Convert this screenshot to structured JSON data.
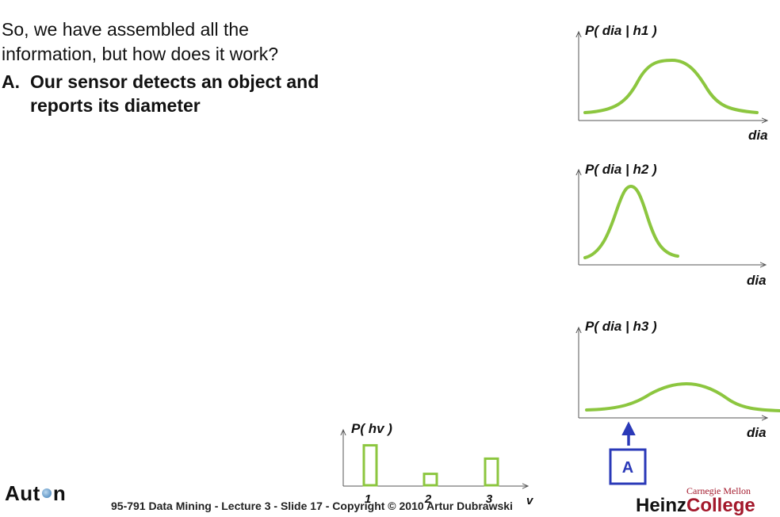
{
  "intro_text": "So, we have assembled all the information, but how does it work?",
  "bullet": {
    "marker": "A.",
    "text": "Our sensor detects an object and reports its diameter"
  },
  "plots": {
    "h1": {
      "title": "P( dia | h1 )",
      "xlabel": "dia"
    },
    "h2": {
      "title": "P( dia | h2 )",
      "xlabel": "dia"
    },
    "h3": {
      "title": "P( dia | h3 )",
      "xlabel": "dia"
    },
    "prior": {
      "title": "P( hv )",
      "xlabel": "v",
      "categories": [
        "1",
        "2",
        "3"
      ],
      "values": [
        0.42,
        0.12,
        0.28
      ]
    }
  },
  "measurement_box": {
    "label": "A"
  },
  "footer": {
    "logo_left": "Aut",
    "logo_right": "n",
    "slide_text": "95-791 Data Mining - Lecture 3 - Slide 17 - Copyright © 2010 Artur Dubrawski",
    "cmu": "Carnegie Mellon",
    "heinz_a": "Heinz",
    "heinz_b": "College"
  },
  "colors": {
    "curve": "#8cc63f",
    "axis": "#555555",
    "marker": "#2a39b8"
  }
}
